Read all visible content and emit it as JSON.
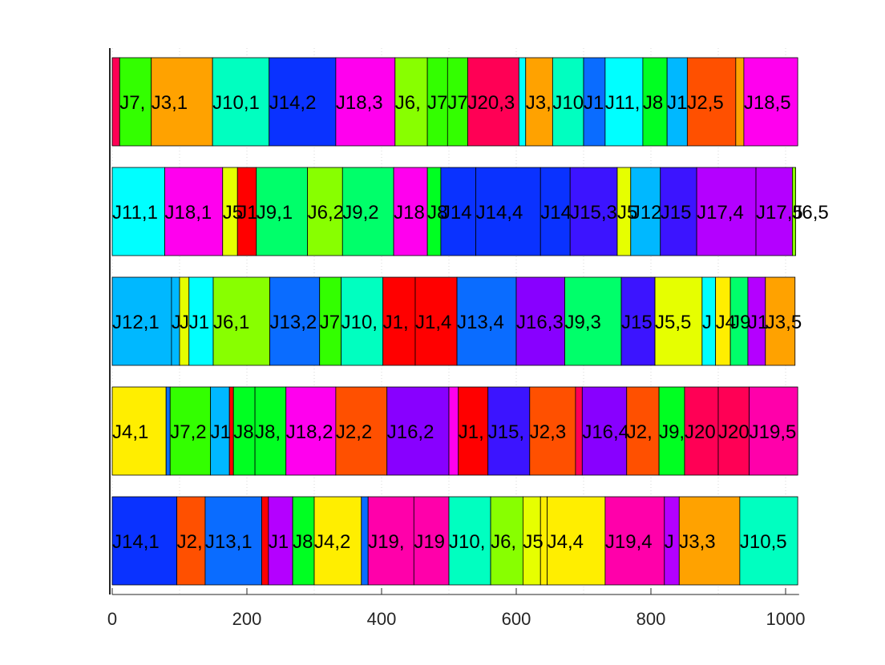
{
  "chart_data": {
    "type": "bar",
    "orientation": "horizontal-stacked",
    "title": "",
    "xlabel": "",
    "ylabel": "",
    "xlim": [
      0,
      1020
    ],
    "grid": true,
    "x_ticks": [
      0,
      200,
      400,
      600,
      800,
      1000
    ],
    "x_tick_labels": [
      "0",
      "200",
      "400",
      "600",
      "800",
      "1000"
    ],
    "rows": [
      {
        "segments": [
          {
            "start": 0,
            "end": 11,
            "label": "",
            "color": "#ff0055"
          },
          {
            "start": 11,
            "end": 58,
            "label": "J7,",
            "color": "#33ff00"
          },
          {
            "start": 58,
            "end": 149,
            "label": "J3,1",
            "color": "#ffa200"
          },
          {
            "start": 149,
            "end": 233,
            "label": "J10,1",
            "color": "#00ffc0"
          },
          {
            "start": 233,
            "end": 332,
            "label": "J14,2",
            "color": "#0a32ff"
          },
          {
            "start": 332,
            "end": 420,
            "label": "J18,3",
            "color": "#ff00ee"
          },
          {
            "start": 420,
            "end": 468,
            "label": "J6,",
            "color": "#88ff00"
          },
          {
            "start": 468,
            "end": 498,
            "label": "J7",
            "color": "#33ff00"
          },
          {
            "start": 498,
            "end": 528,
            "label": "J7",
            "color": "#33ff00"
          },
          {
            "start": 528,
            "end": 604,
            "label": "J20,3",
            "color": "#ff0055"
          },
          {
            "start": 604,
            "end": 614,
            "label": "",
            "color": "#00ffff"
          },
          {
            "start": 614,
            "end": 654,
            "label": "J3,",
            "color": "#ffa200"
          },
          {
            "start": 654,
            "end": 700,
            "label": "J10",
            "color": "#00ffc0"
          },
          {
            "start": 700,
            "end": 732,
            "label": "J1",
            "color": "#0a6cff"
          },
          {
            "start": 732,
            "end": 788,
            "label": "J11,",
            "color": "#00ffff"
          },
          {
            "start": 788,
            "end": 824,
            "label": "J8",
            "color": "#00ff22"
          },
          {
            "start": 824,
            "end": 854,
            "label": "J1",
            "color": "#00b8ff"
          },
          {
            "start": 854,
            "end": 926,
            "label": "J2,5",
            "color": "#ff5000"
          },
          {
            "start": 926,
            "end": 938,
            "label": "",
            "color": "#ffa200"
          },
          {
            "start": 938,
            "end": 1018,
            "label": "J18,5",
            "color": "#ff00ee"
          }
        ]
      },
      {
        "segments": [
          {
            "start": 0,
            "end": 78,
            "label": "J11,1",
            "color": "#00ffff"
          },
          {
            "start": 78,
            "end": 164,
            "label": "J18,1",
            "color": "#ff00ee"
          },
          {
            "start": 164,
            "end": 186,
            "label": "J5",
            "color": "#e6ff00"
          },
          {
            "start": 186,
            "end": 214,
            "label": "J1",
            "color": "#ff0000"
          },
          {
            "start": 214,
            "end": 290,
            "label": "J9,1",
            "color": "#00ff6a"
          },
          {
            "start": 290,
            "end": 342,
            "label": "J6,2",
            "color": "#88ff00"
          },
          {
            "start": 342,
            "end": 418,
            "label": "J9,2",
            "color": "#00ff6a"
          },
          {
            "start": 418,
            "end": 468,
            "label": "J18",
            "color": "#ff00ee"
          },
          {
            "start": 468,
            "end": 488,
            "label": "J8",
            "color": "#00ff22"
          },
          {
            "start": 488,
            "end": 540,
            "label": "J14",
            "color": "#0a32ff"
          },
          {
            "start": 540,
            "end": 636,
            "label": "J14,4",
            "color": "#0a32ff"
          },
          {
            "start": 636,
            "end": 680,
            "label": "J14",
            "color": "#0a32ff"
          },
          {
            "start": 680,
            "end": 750,
            "label": "J15,3",
            "color": "#3c14ff"
          },
          {
            "start": 750,
            "end": 770,
            "label": "J5",
            "color": "#e6ff00"
          },
          {
            "start": 770,
            "end": 814,
            "label": "J12",
            "color": "#00b8ff"
          },
          {
            "start": 814,
            "end": 868,
            "label": "J15",
            "color": "#3c14ff"
          },
          {
            "start": 868,
            "end": 956,
            "label": "J17,4",
            "color": "#b400ff"
          },
          {
            "start": 956,
            "end": 1010,
            "label": "J17,5",
            "color": "#b400ff"
          },
          {
            "start": 1010,
            "end": 1015,
            "label": "J6,5",
            "color": "#88ff00"
          }
        ]
      },
      {
        "segments": [
          {
            "start": 0,
            "end": 88,
            "label": "J12,1",
            "color": "#00b8ff"
          },
          {
            "start": 88,
            "end": 100,
            "label": "J",
            "color": "#00b8ff"
          },
          {
            "start": 100,
            "end": 114,
            "label": "J",
            "color": "#e6ff00"
          },
          {
            "start": 114,
            "end": 150,
            "label": "J1",
            "color": "#00ffff"
          },
          {
            "start": 150,
            "end": 234,
            "label": "J6,1",
            "color": "#88ff00"
          },
          {
            "start": 234,
            "end": 308,
            "label": "J13,2",
            "color": "#0a6cff"
          },
          {
            "start": 308,
            "end": 340,
            "label": "J7",
            "color": "#33ff00"
          },
          {
            "start": 340,
            "end": 402,
            "label": "J10,",
            "color": "#00ffc0"
          },
          {
            "start": 402,
            "end": 450,
            "label": "J1,",
            "color": "#ff0000"
          },
          {
            "start": 450,
            "end": 512,
            "label": "J1,4",
            "color": "#ff0000"
          },
          {
            "start": 512,
            "end": 600,
            "label": "J13,4",
            "color": "#0a6cff"
          },
          {
            "start": 600,
            "end": 672,
            "label": "J16,3",
            "color": "#8800ff"
          },
          {
            "start": 672,
            "end": 756,
            "label": "J9,3",
            "color": "#00ff6a"
          },
          {
            "start": 756,
            "end": 806,
            "label": "J15",
            "color": "#3c14ff"
          },
          {
            "start": 806,
            "end": 876,
            "label": "J5,5",
            "color": "#e6ff00"
          },
          {
            "start": 876,
            "end": 896,
            "label": "J",
            "color": "#00ffff"
          },
          {
            "start": 896,
            "end": 918,
            "label": "J4",
            "color": "#ffee00"
          },
          {
            "start": 918,
            "end": 944,
            "label": "J9",
            "color": "#00ff6a"
          },
          {
            "start": 944,
            "end": 970,
            "label": "J1",
            "color": "#b400ff"
          },
          {
            "start": 970,
            "end": 1014,
            "label": "J3,5",
            "color": "#ffa200"
          }
        ]
      },
      {
        "segments": [
          {
            "start": 0,
            "end": 80,
            "label": "J4,1",
            "color": "#ffee00"
          },
          {
            "start": 80,
            "end": 86,
            "label": "",
            "color": "#0a6cff"
          },
          {
            "start": 86,
            "end": 146,
            "label": "J7,2",
            "color": "#33ff00"
          },
          {
            "start": 146,
            "end": 174,
            "label": "J1",
            "color": "#00b8ff"
          },
          {
            "start": 174,
            "end": 180,
            "label": "",
            "color": "#ff0000"
          },
          {
            "start": 180,
            "end": 212,
            "label": "J8",
            "color": "#00ff22"
          },
          {
            "start": 212,
            "end": 258,
            "label": "J8,",
            "color": "#00ff22"
          },
          {
            "start": 258,
            "end": 332,
            "label": "J18,2",
            "color": "#ff00ee"
          },
          {
            "start": 332,
            "end": 408,
            "label": "J2,2",
            "color": "#ff5000"
          },
          {
            "start": 408,
            "end": 500,
            "label": "J16,2",
            "color": "#8800ff"
          },
          {
            "start": 500,
            "end": 514,
            "label": "",
            "color": "#ff00ee"
          },
          {
            "start": 514,
            "end": 558,
            "label": "J1,",
            "color": "#ff0000"
          },
          {
            "start": 558,
            "end": 620,
            "label": "J15,",
            "color": "#3c14ff"
          },
          {
            "start": 620,
            "end": 688,
            "label": "J2,3",
            "color": "#ff5000"
          },
          {
            "start": 688,
            "end": 698,
            "label": "",
            "color": "#ff0055"
          },
          {
            "start": 698,
            "end": 764,
            "label": "J16,4",
            "color": "#8800ff"
          },
          {
            "start": 764,
            "end": 812,
            "label": "J2,",
            "color": "#ff5000"
          },
          {
            "start": 812,
            "end": 850,
            "label": "J9,",
            "color": "#00ff22"
          },
          {
            "start": 850,
            "end": 900,
            "label": "J20",
            "color": "#ff0055"
          },
          {
            "start": 900,
            "end": 946,
            "label": "J20",
            "color": "#ff0055"
          },
          {
            "start": 946,
            "end": 1018,
            "label": "J19,5",
            "color": "#ff00aa"
          }
        ]
      },
      {
        "segments": [
          {
            "start": 0,
            "end": 96,
            "label": "J14,1",
            "color": "#0a32ff"
          },
          {
            "start": 96,
            "end": 138,
            "label": "J2,",
            "color": "#ff5000"
          },
          {
            "start": 138,
            "end": 222,
            "label": "J13,1",
            "color": "#0a6cff"
          },
          {
            "start": 222,
            "end": 232,
            "label": "",
            "color": "#ff0000"
          },
          {
            "start": 232,
            "end": 268,
            "label": "J1",
            "color": "#b400ff"
          },
          {
            "start": 268,
            "end": 300,
            "label": "J8",
            "color": "#00ff22"
          },
          {
            "start": 300,
            "end": 370,
            "label": "J4,2",
            "color": "#ffee00"
          },
          {
            "start": 370,
            "end": 380,
            "label": "",
            "color": "#0a6cff"
          },
          {
            "start": 380,
            "end": 448,
            "label": "J19,",
            "color": "#ff00aa"
          },
          {
            "start": 448,
            "end": 500,
            "label": "J19",
            "color": "#ff00aa"
          },
          {
            "start": 500,
            "end": 562,
            "label": "J10,",
            "color": "#00ffc0"
          },
          {
            "start": 562,
            "end": 610,
            "label": "J6,",
            "color": "#88ff00"
          },
          {
            "start": 610,
            "end": 636,
            "label": "J5",
            "color": "#e6ff00"
          },
          {
            "start": 636,
            "end": 646,
            "label": "",
            "color": "#ffee00"
          },
          {
            "start": 646,
            "end": 732,
            "label": "J4,4",
            "color": "#ffee00"
          },
          {
            "start": 732,
            "end": 820,
            "label": "J19,4",
            "color": "#ff00aa"
          },
          {
            "start": 820,
            "end": 842,
            "label": "J",
            "color": "#b400ff"
          },
          {
            "start": 842,
            "end": 932,
            "label": "J3,3",
            "color": "#ffa200"
          },
          {
            "start": 932,
            "end": 1018,
            "label": "J10,5",
            "color": "#00ffc0"
          }
        ]
      }
    ]
  }
}
